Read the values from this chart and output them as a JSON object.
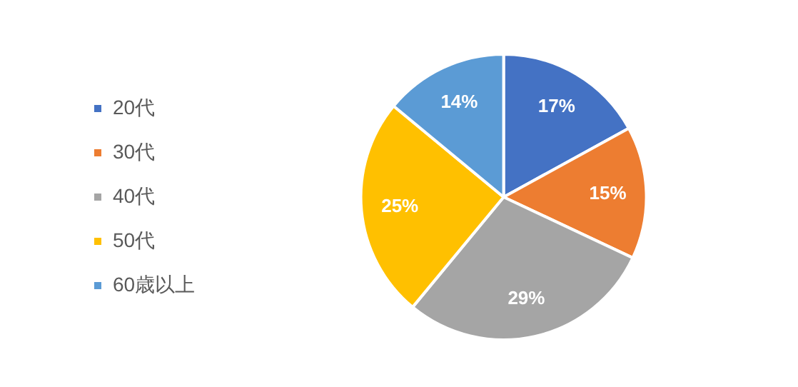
{
  "chart_data": {
    "type": "pie",
    "categories": [
      "20代",
      "30代",
      "40代",
      "50代",
      "60歳以上"
    ],
    "values": [
      17,
      15,
      29,
      25,
      14
    ],
    "colors": [
      "#4472c4",
      "#ed7d31",
      "#a5a5a5",
      "#ffc000",
      "#5b9bd5"
    ],
    "value_labels": [
      "17%",
      "15%",
      "29%",
      "25%",
      "14%"
    ],
    "legend": "left"
  }
}
